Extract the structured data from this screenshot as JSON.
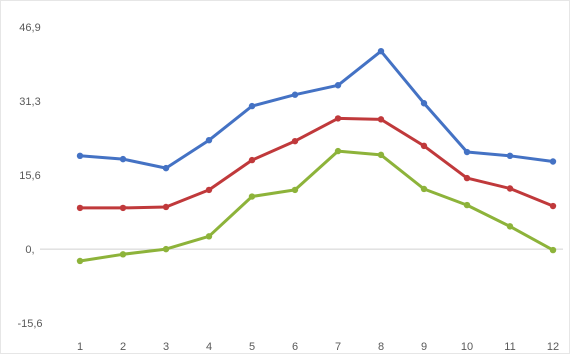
{
  "chart_data": {
    "type": "line",
    "title": "",
    "xlabel": "",
    "ylabel": "",
    "categories": [
      "1",
      "2",
      "3",
      "4",
      "5",
      "6",
      "7",
      "8",
      "9",
      "10",
      "11",
      "12"
    ],
    "y_ticks": [
      "46,9",
      "31,3",
      "15,6",
      "0,",
      "-15,6"
    ],
    "y_tick_values": [
      46.9,
      31.3,
      15.6,
      0,
      -15.6
    ],
    "ylim": [
      -15.6,
      46.9
    ],
    "grid": false,
    "legend": "none",
    "series": [
      {
        "color": "#4472C4",
        "values": [
          19.7,
          19.0,
          17.1,
          23.0,
          30.2,
          32.6,
          34.6,
          41.8,
          30.8,
          20.5,
          19.7,
          18.5
        ]
      },
      {
        "color": "#C0393B",
        "values": [
          8.7,
          8.7,
          8.9,
          12.5,
          18.8,
          22.8,
          27.6,
          27.4,
          21.8,
          15.0,
          12.8,
          9.1
        ]
      },
      {
        "color": "#8DB33A",
        "values": [
          -2.5,
          -1.1,
          0.0,
          2.7,
          11.1,
          12.5,
          20.7,
          19.9,
          12.7,
          9.3,
          4.8,
          -0.2
        ]
      }
    ]
  }
}
